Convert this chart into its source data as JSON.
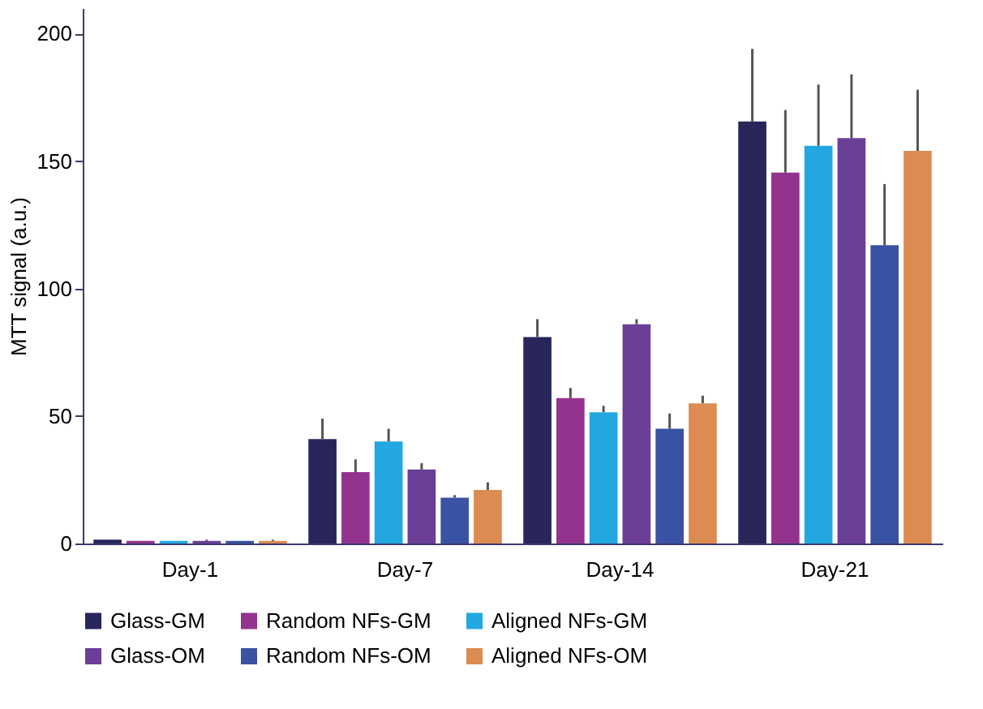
{
  "chart_data": {
    "type": "bar",
    "ylabel": "MTT signal (a.u.)",
    "categories": [
      "Day-1",
      "Day-7",
      "Day-14",
      "Day-21"
    ],
    "series": [
      {
        "name": "Glass-GM",
        "color": "#27255a",
        "values": [
          1.5,
          41,
          81,
          165.5
        ],
        "errors": [
          [
            1.5,
            1.5
          ],
          [
            41,
            49
          ],
          [
            81,
            88
          ],
          [
            165.5,
            194
          ]
        ]
      },
      {
        "name": "Random NFs-GM",
        "color": "#93338e",
        "values": [
          1,
          28,
          57,
          145.5
        ],
        "errors": [
          [
            1,
            1
          ],
          [
            28,
            33
          ],
          [
            57,
            61
          ],
          [
            145.5,
            170
          ]
        ]
      },
      {
        "name": "Aligned NFs-GM",
        "color": "#22a7e0",
        "values": [
          1,
          40,
          51.5,
          156
        ],
        "errors": [
          [
            1,
            1
          ],
          [
            40,
            45
          ],
          [
            51.5,
            54
          ],
          [
            156,
            180
          ]
        ]
      },
      {
        "name": "Glass-OM",
        "color": "#6b3e98",
        "values": [
          1,
          29,
          86,
          159
        ],
        "errors": [
          [
            1,
            1.5
          ],
          [
            29,
            31.5
          ],
          [
            86,
            88
          ],
          [
            159,
            184
          ]
        ]
      },
      {
        "name": "Random NFs-OM",
        "color": "#3a52a3",
        "values": [
          1,
          18,
          45,
          117
        ],
        "errors": [
          [
            1,
            1
          ],
          [
            18,
            19
          ],
          [
            45,
            51
          ],
          [
            117,
            141
          ]
        ]
      },
      {
        "name": "Aligned NFs-OM",
        "color": "#dc8b52",
        "values": [
          1,
          21,
          55,
          154
        ],
        "errors": [
          [
            1,
            1.5
          ],
          [
            21,
            24
          ],
          [
            55,
            58
          ],
          [
            154,
            178
          ]
        ]
      }
    ],
    "ylim": [
      0,
      210
    ],
    "yticks": [
      0,
      50,
      100,
      150,
      200
    ],
    "grid": false,
    "legend": "bottom"
  }
}
